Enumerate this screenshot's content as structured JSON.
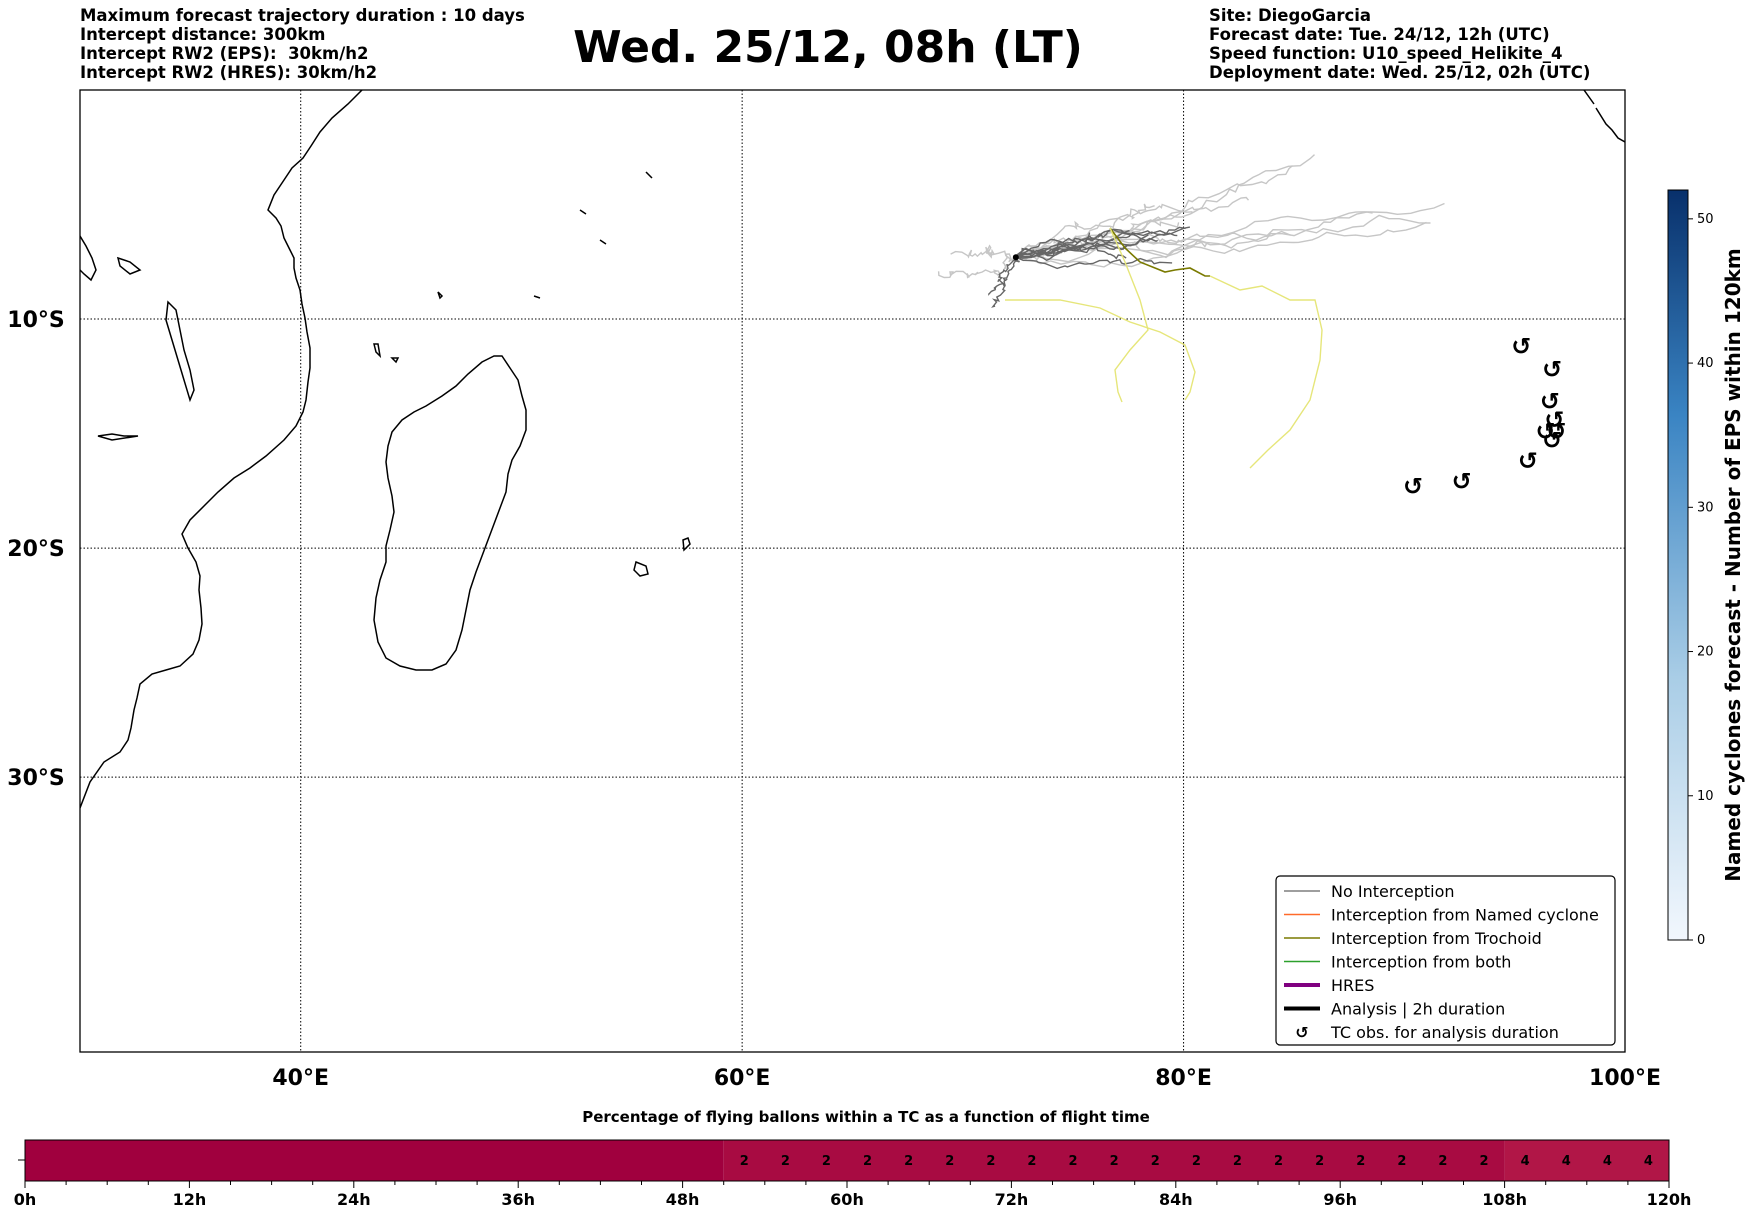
{
  "header_left": [
    "Maximum forecast trajectory duration : 10 days",
    "Intercept distance: 300km",
    "Intercept RW2 (EPS):  30km/h2",
    "Intercept RW2 (HRES): 30km/h2"
  ],
  "title": "Wed. 25/12, 08h (LT)",
  "header_right": [
    "Site: DiegoGarcia",
    "Forecast date: Tue. 24/12, 12h (UTC)",
    "Speed function: U10_speed_Helikite_4",
    "Deployment date: Wed. 25/12, 02h (UTC)"
  ],
  "map": {
    "lon_range": [
      30,
      100
    ],
    "lat_range": [
      -42,
      0
    ],
    "lon_ticks": [
      {
        "value": 40,
        "label": "40°E"
      },
      {
        "value": 60,
        "label": "60°E"
      },
      {
        "value": 80,
        "label": "80°E"
      },
      {
        "value": 100,
        "label": "100°E"
      }
    ],
    "lat_ticks": [
      {
        "value": -10,
        "label": "10°S"
      },
      {
        "value": -20,
        "label": "20°S"
      },
      {
        "value": -30,
        "label": "30°S"
      }
    ],
    "grid": "dotted",
    "launch_site": {
      "lon": 72.4,
      "lat": -7.3
    },
    "tc_symbol": "↺",
    "tc_obs": [
      {
        "lon": 90.4,
        "lat": -17.3
      },
      {
        "lon": 92.6,
        "lat": -17.1
      },
      {
        "lon": 95.3,
        "lat": -11.2
      },
      {
        "lon": 95.6,
        "lat": -16.2
      },
      {
        "lon": 96.7,
        "lat": -12.2
      },
      {
        "lon": 96.6,
        "lat": -13.6
      },
      {
        "lon": 96.8,
        "lat": -14.4
      },
      {
        "lon": 96.4,
        "lat": -14.9
      },
      {
        "lon": 96.7,
        "lat": -15.3
      },
      {
        "lon": 96.9,
        "lat": -14.9
      }
    ],
    "colors": {
      "no_interception_light": "#c6c6c6",
      "no_interception_dark": "#666666",
      "trochoid": "#7a7a00",
      "trochoid_light": "#e6e67a",
      "named_cyclone": "#ff6a2a",
      "both": "#2ca02c",
      "hres": "#800080",
      "analysis": "#000000"
    }
  },
  "legend": [
    {
      "label": "No Interception",
      "color": "#7f7f7f",
      "width": 1.5,
      "type": "line"
    },
    {
      "label": "Interception from Named cyclone",
      "color": "#ff6a2a",
      "width": 1.5,
      "type": "line"
    },
    {
      "label": "Interception from Trochoid",
      "color": "#7a7a00",
      "width": 1.5,
      "type": "line"
    },
    {
      "label": "Interception from both",
      "color": "#2ca02c",
      "width": 1.5,
      "type": "line"
    },
    {
      "label": "HRES",
      "color": "#800080",
      "width": 4,
      "type": "line"
    },
    {
      "label": "Analysis | 2h duration",
      "color": "#000000",
      "width": 4,
      "type": "line"
    },
    {
      "label": "TC obs. for analysis duration",
      "color": "#000000",
      "type": "marker",
      "symbol": "↺"
    }
  ],
  "colorbar": {
    "label": "Named cyclones forecast - Number of EPS within 120km",
    "ticks": [
      "0",
      "10",
      "20",
      "30",
      "40",
      "50"
    ],
    "range": [
      0,
      52
    ],
    "color_low": "#f2f7fd",
    "color_high": "#08306b"
  },
  "bottom_bar": {
    "title": "Percentage of flying ballons within a TC as a function of flight time",
    "ticks": [
      "0h",
      "12h",
      "24h",
      "36h",
      "48h",
      "60h",
      "72h",
      "84h",
      "96h",
      "108h",
      "120h"
    ],
    "hours_max": 120,
    "cell_hours": 3,
    "segments": [
      {
        "from_h": 0,
        "to_h": 51,
        "value": 0,
        "color": "#a0003e"
      },
      {
        "from_h": 51,
        "to_h": 108,
        "value": 2,
        "color": "#a80b42"
      },
      {
        "from_h": 108,
        "to_h": 120,
        "value": 4,
        "color": "#b11647"
      }
    ]
  }
}
